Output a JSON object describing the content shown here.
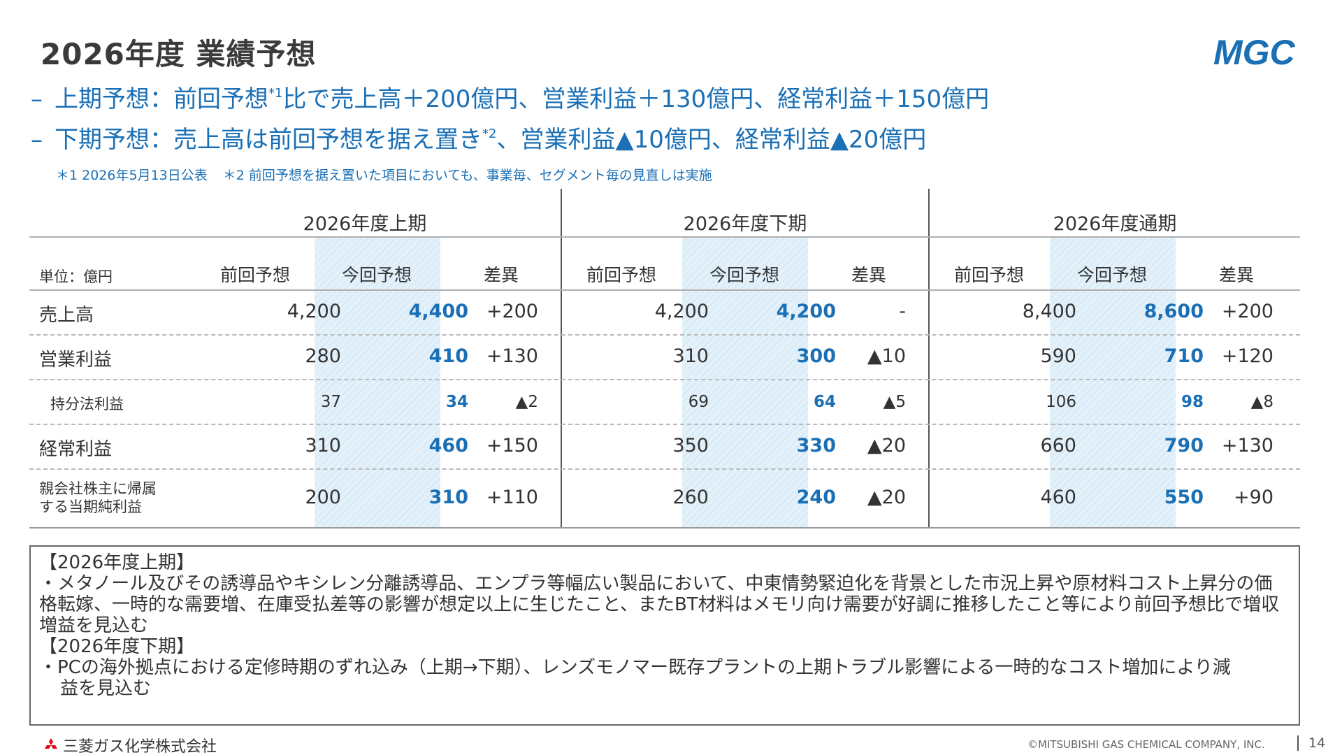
{
  "title": "2026年度 業績予想",
  "logo_text": "MGC",
  "bullets": [
    {
      "dash": "–",
      "pre": "上期予想：前回予想",
      "sup": "*1",
      "post": "比で売上高＋200億円、営業利益＋130億円、経常利益＋150億円"
    },
    {
      "dash": "–",
      "pre": "下期予想：売上高は前回予想を据え置き",
      "sup": "*2",
      "post": "、営業利益▲10億円、経常利益▲20億円"
    }
  ],
  "notes": [
    "＊1 2026年5月13日公表",
    "＊2  前回予想を据え置いた項目においても、事業毎、セグメント毎の見直しは実施"
  ],
  "table": {
    "unit": "単位：億円",
    "groups": [
      "2026年度上期",
      "2026年度下期",
      "2026年度通期"
    ],
    "headers": [
      "前回予想",
      "今回予想",
      "差異"
    ],
    "rows": [
      {
        "label": "売上高",
        "values": [
          "4,200",
          "4,400",
          "+200",
          "4,200",
          "4,200",
          "-",
          "8,400",
          "8,600",
          "+200"
        ]
      },
      {
        "label": "営業利益",
        "values": [
          "280",
          "410",
          "+130",
          "310",
          "300",
          "▲10",
          "590",
          "710",
          "+120"
        ]
      },
      {
        "label": "持分法利益",
        "values": [
          "37",
          "34",
          "▲2",
          "69",
          "64",
          "▲5",
          "106",
          "98",
          "▲8"
        ]
      },
      {
        "label": "経常利益",
        "values": [
          "310",
          "460",
          "+150",
          "350",
          "330",
          "▲20",
          "660",
          "790",
          "+130"
        ]
      },
      {
        "label_line1": "親会社株主に帰属",
        "label_line2": "する当期純利益",
        "values": [
          "200",
          "310",
          "+110",
          "260",
          "240",
          "▲20",
          "460",
          "550",
          "+90"
        ]
      }
    ]
  },
  "comments": [
    {
      "text": "【2026年度上期】",
      "indent": false
    },
    {
      "text": "・メタノール及びその誘導品やキシレン分離誘導品、エンプラ等幅広い製品において、中東情勢緊迫化を背景とした市況上昇や原材料コスト上昇分の価格転嫁、一時的な需要増、在庫受払差等の影響が想定以上に生じたこと、またBT材料はメモリ向け需要が好調に推移したこと等により前回予想比で増収増益を見込む",
      "indent": false
    },
    {
      "text": "【2026年度下期】",
      "indent": false
    },
    {
      "text": "・PCの海外拠点における定修時期のずれ込み（上期→下期）、レンズモノマー既存プラントの上期トラブル影響による一時的なコスト増加により減",
      "indent": false
    },
    {
      "text": "益を見込む",
      "indent": true
    }
  ],
  "footer": {
    "company": "三菱ガス化学株式会社",
    "copyright": "©MITSUBISHI GAS CHEMICAL COMPANY, INC.",
    "page": "14"
  },
  "colors": {
    "accent": "#1a6fb5",
    "shade": "#e4f1fa",
    "text": "#333333"
  }
}
